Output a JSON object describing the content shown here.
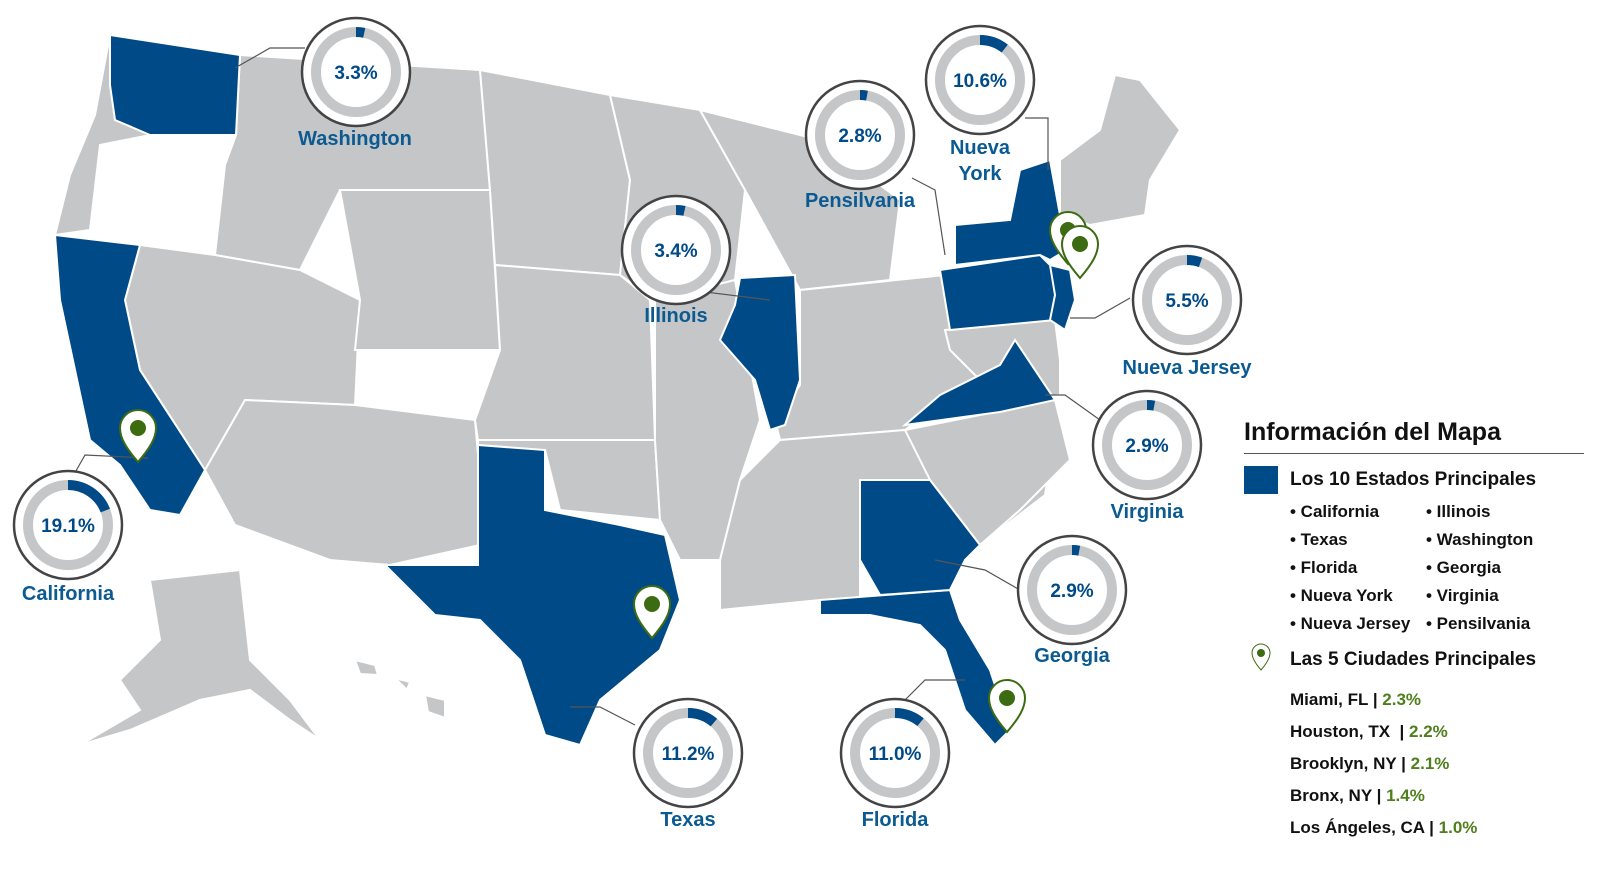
{
  "map": {
    "accent_color": "#004b87",
    "base_color": "#c5c6c8",
    "pin_color": "#3d6b12",
    "states": [
      {
        "name": "California",
        "value": "19.1%",
        "fraction": 0.191
      },
      {
        "name": "Texas",
        "value": "11.2%",
        "fraction": 0.112
      },
      {
        "name": "Florida",
        "value": "11.0%",
        "fraction": 0.11
      },
      {
        "name": "Nueva York",
        "value": "10.6%",
        "fraction": 0.106
      },
      {
        "name": "Nueva Jersey",
        "value": "5.5%",
        "fraction": 0.055
      },
      {
        "name": "Illinois",
        "value": "3.4%",
        "fraction": 0.034
      },
      {
        "name": "Washington",
        "value": "3.3%",
        "fraction": 0.033
      },
      {
        "name": "Georgia",
        "value": "2.9%",
        "fraction": 0.029
      },
      {
        "name": "Virginia",
        "value": "2.9%",
        "fraction": 0.029
      },
      {
        "name": "Pensilvania",
        "value": "2.8%",
        "fraction": 0.028
      }
    ],
    "label_lines": {
      "nueva_york": [
        "Nueva",
        "York"
      ]
    }
  },
  "legend": {
    "title": "Información del Mapa",
    "top_states_label": "Los 10 Estados Principales",
    "top_states_col1": [
      "• California",
      "• Texas",
      "• Florida",
      "• Nueva York",
      "• Nueva Jersey"
    ],
    "top_states_col2": [
      "• Illinois",
      "• Washington",
      "• Georgia",
      "• Virginia",
      "• Pensilvania"
    ],
    "top_cities_label": "Las 5 Ciudades Principales",
    "cities": [
      {
        "name": "Miami, FL",
        "sep": " | ",
        "value": "2.3%"
      },
      {
        "name": "Houston, TX",
        "sep": "  | ",
        "value": "2.2%"
      },
      {
        "name": "Brooklyn, NY",
        "sep": " | ",
        "value": "2.1%"
      },
      {
        "name": "Bronx, NY",
        "sep": " | ",
        "value": "1.4%"
      },
      {
        "name": "Los Ángeles, CA",
        "sep": " | ",
        "value": "1.0%"
      }
    ]
  }
}
